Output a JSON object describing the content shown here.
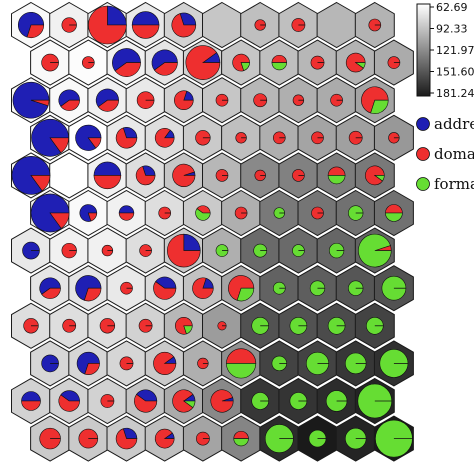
{
  "chart_data": {
    "type": "som-hexagonal-pie-map",
    "grid": {
      "columns": 10,
      "rows": 12
    },
    "colorbar": {
      "ticks": [
        "62.69",
        "92.33",
        "121.97",
        "151.60",
        "181.24"
      ],
      "min": 62.69,
      "max": 181.24,
      "gradient_from": "#ffffff",
      "gradient_to": "#1a1a1a"
    },
    "legend": [
      {
        "label": "addres",
        "color": "#1f1fb4"
      },
      {
        "label": "domai",
        "color": "#ee2f2f"
      },
      {
        "label": "forma",
        "color": "#66dd33"
      }
    ],
    "categories_colors": [
      "#1f1fb4",
      "#ee2f2f",
      "#66dd33"
    ],
    "background_values": [
      [
        66,
        70,
        70,
        74,
        86,
        92,
        96,
        96,
        100,
        102
      ],
      [
        66,
        64,
        70,
        76,
        86,
        92,
        96,
        100,
        102,
        106
      ],
      [
        66,
        66,
        70,
        74,
        86,
        92,
        100,
        104,
        106,
        110
      ],
      [
        66,
        62.69,
        74,
        80,
        90,
        96,
        104,
        110,
        112,
        116
      ],
      [
        66,
        62.69,
        70,
        80,
        92,
        100,
        124,
        128,
        130,
        132
      ],
      [
        70,
        66,
        70,
        80,
        90,
        104,
        132,
        134,
        136,
        136
      ],
      [
        74,
        70,
        70,
        80,
        90,
        104,
        140,
        140,
        142,
        144
      ],
      [
        76,
        76,
        74,
        82,
        94,
        110,
        144,
        146,
        150,
        152
      ],
      [
        80,
        80,
        80,
        86,
        100,
        114,
        152,
        152,
        156,
        160
      ],
      [
        84,
        84,
        84,
        90,
        104,
        120,
        160,
        160,
        166,
        170
      ],
      [
        86,
        86,
        86,
        94,
        106,
        124,
        166,
        168,
        172,
        176
      ],
      [
        90,
        90,
        90,
        96,
        110,
        126,
        172,
        181.24,
        176,
        181.24
      ]
    ],
    "pies": [
      [
        {
          "size": 0.45,
          "shares": [
            0.7,
            0.3,
            0
          ]
        },
        {
          "size": 0.15,
          "shares": [
            0,
            1,
            0
          ]
        },
        {
          "size": 1.0,
          "shares": [
            0.25,
            0.75,
            0
          ]
        },
        {
          "size": 0.5,
          "shares": [
            0.5,
            0.5,
            0
          ]
        },
        {
          "size": 0.4,
          "shares": [
            0.3,
            0.7,
            0
          ]
        },
        {
          "size": 0,
          "shares": [
            0,
            0,
            0
          ]
        },
        {
          "size": 0.08,
          "shares": [
            0,
            1,
            0
          ]
        },
        {
          "size": 0.12,
          "shares": [
            0,
            1,
            0
          ]
        },
        {
          "size": 0,
          "shares": [
            0,
            0,
            0
          ]
        },
        {
          "size": 0.1,
          "shares": [
            0,
            1,
            0
          ]
        }
      ],
      [
        {
          "size": 0.2,
          "shares": [
            0,
            1,
            0
          ]
        },
        {
          "size": 0.1,
          "shares": [
            0,
            1,
            0
          ]
        },
        {
          "size": 0.55,
          "shares": [
            0.6,
            0.4,
            0
          ]
        },
        {
          "size": 0.45,
          "shares": [
            0.6,
            0.4,
            0
          ]
        },
        {
          "size": 0.8,
          "shares": [
            0.1,
            0.9,
            0
          ]
        },
        {
          "size": 0.2,
          "shares": [
            0,
            0.8,
            0.2
          ]
        },
        {
          "size": 0.15,
          "shares": [
            0,
            0.5,
            0.5
          ]
        },
        {
          "size": 0.12,
          "shares": [
            0,
            1,
            0
          ]
        },
        {
          "size": 0.25,
          "shares": [
            0,
            0.9,
            0.1
          ]
        },
        {
          "size": 0.1,
          "shares": [
            0,
            1,
            0
          ]
        }
      ],
      [
        {
          "size": 0.9,
          "shares": [
            0.95,
            0.05,
            0
          ]
        },
        {
          "size": 0.3,
          "shares": [
            0.6,
            0.4,
            0
          ]
        },
        {
          "size": 0.35,
          "shares": [
            0.6,
            0.4,
            0
          ]
        },
        {
          "size": 0.2,
          "shares": [
            0,
            1,
            0
          ]
        },
        {
          "size": 0.25,
          "shares": [
            0.2,
            0.8,
            0
          ]
        },
        {
          "size": 0.1,
          "shares": [
            0,
            1,
            0
          ]
        },
        {
          "size": 0.12,
          "shares": [
            0,
            1,
            0
          ]
        },
        {
          "size": 0.08,
          "shares": [
            0,
            1,
            0
          ]
        },
        {
          "size": 0.1,
          "shares": [
            0,
            1,
            0
          ]
        },
        {
          "size": 0.5,
          "shares": [
            0,
            0.7,
            0.3
          ]
        }
      ],
      [
        {
          "size": 0.95,
          "shares": [
            0.85,
            0.15,
            0
          ]
        },
        {
          "size": 0.45,
          "shares": [
            0.85,
            0.15,
            0
          ]
        },
        {
          "size": 0.3,
          "shares": [
            0.3,
            0.7,
            0
          ]
        },
        {
          "size": 0.25,
          "shares": [
            0.15,
            0.85,
            0
          ]
        },
        {
          "size": 0.15,
          "shares": [
            0,
            1,
            0
          ]
        },
        {
          "size": 0.08,
          "shares": [
            0,
            1,
            0
          ]
        },
        {
          "size": 0.1,
          "shares": [
            0,
            1,
            0
          ]
        },
        {
          "size": 0.1,
          "shares": [
            0,
            1,
            0
          ]
        },
        {
          "size": 0.12,
          "shares": [
            0,
            1,
            0
          ]
        },
        {
          "size": 0.08,
          "shares": [
            0,
            1,
            0
          ]
        }
      ],
      [
        {
          "size": 1.0,
          "shares": [
            0.85,
            0.15,
            0
          ]
        },
        {
          "size": 0,
          "shares": [
            0,
            0,
            0
          ]
        },
        {
          "size": 0.5,
          "shares": [
            0.5,
            0.5,
            0
          ]
        },
        {
          "size": 0.25,
          "shares": [
            0.3,
            0.7,
            0
          ]
        },
        {
          "size": 0.35,
          "shares": [
            0.05,
            0.95,
            0
          ]
        },
        {
          "size": 0.1,
          "shares": [
            0,
            1,
            0
          ]
        },
        {
          "size": 0.08,
          "shares": [
            0,
            1,
            0
          ]
        },
        {
          "size": 0.1,
          "shares": [
            0,
            1,
            0
          ]
        },
        {
          "size": 0.2,
          "shares": [
            0,
            0.5,
            0.5
          ]
        },
        {
          "size": 0.25,
          "shares": [
            0,
            0.9,
            0.1
          ]
        }
      ],
      [
        {
          "size": 1.0,
          "shares": [
            0.85,
            0.15,
            0
          ]
        },
        {
          "size": 0.2,
          "shares": [
            0.8,
            0.2,
            0
          ]
        },
        {
          "size": 0.15,
          "shares": [
            0.5,
            0.5,
            0
          ]
        },
        {
          "size": 0.1,
          "shares": [
            0,
            1,
            0
          ]
        },
        {
          "size": 0.15,
          "shares": [
            0,
            0.4,
            0.6
          ]
        },
        {
          "size": 0.1,
          "shares": [
            0,
            1,
            0
          ]
        },
        {
          "size": 0.08,
          "shares": [
            0,
            0,
            1
          ]
        },
        {
          "size": 0.1,
          "shares": [
            0,
            1,
            0
          ]
        },
        {
          "size": 0.15,
          "shares": [
            0,
            0,
            1
          ]
        },
        {
          "size": 0.2,
          "shares": [
            0,
            0.5,
            0.5
          ]
        }
      ],
      [
        {
          "size": 0.2,
          "shares": [
            1,
            0,
            0
          ]
        },
        {
          "size": 0.15,
          "shares": [
            0,
            1,
            0
          ]
        },
        {
          "size": 0.08,
          "shares": [
            0,
            1,
            0
          ]
        },
        {
          "size": 0.1,
          "shares": [
            0,
            1,
            0
          ]
        },
        {
          "size": 0.75,
          "shares": [
            0.25,
            0.75,
            0
          ]
        },
        {
          "size": 0.1,
          "shares": [
            0,
            0,
            1
          ]
        },
        {
          "size": 0.12,
          "shares": [
            0,
            0,
            1
          ]
        },
        {
          "size": 0.1,
          "shares": [
            0,
            0,
            1
          ]
        },
        {
          "size": 0.15,
          "shares": [
            0,
            0,
            1
          ]
        },
        {
          "size": 0.75,
          "shares": [
            0,
            0.05,
            0.95
          ]
        }
      ],
      [
        {
          "size": 0.3,
          "shares": [
            0.6,
            0.4,
            0
          ]
        },
        {
          "size": 0.45,
          "shares": [
            0.7,
            0.3,
            0
          ]
        },
        {
          "size": 0.1,
          "shares": [
            0,
            1,
            0
          ]
        },
        {
          "size": 0.35,
          "shares": [
            0.4,
            0.6,
            0
          ]
        },
        {
          "size": 0.3,
          "shares": [
            0.2,
            0.8,
            0
          ]
        },
        {
          "size": 0.45,
          "shares": [
            0,
            0.7,
            0.3
          ]
        },
        {
          "size": 0.1,
          "shares": [
            0,
            0,
            1
          ]
        },
        {
          "size": 0.15,
          "shares": [
            0,
            0,
            1
          ]
        },
        {
          "size": 0.15,
          "shares": [
            0,
            0,
            1
          ]
        },
        {
          "size": 0.4,
          "shares": [
            0,
            0,
            1
          ]
        }
      ],
      [
        {
          "size": 0.15,
          "shares": [
            0,
            1,
            0
          ]
        },
        {
          "size": 0.12,
          "shares": [
            0,
            1,
            0
          ]
        },
        {
          "size": 0.15,
          "shares": [
            0,
            1,
            0
          ]
        },
        {
          "size": 0.12,
          "shares": [
            0,
            1,
            0
          ]
        },
        {
          "size": 0.2,
          "shares": [
            0,
            0.8,
            0.2
          ]
        },
        {
          "size": 0.05,
          "shares": [
            0,
            1,
            0
          ]
        },
        {
          "size": 0.2,
          "shares": [
            0,
            0,
            1
          ]
        },
        {
          "size": 0.2,
          "shares": [
            0,
            0,
            1
          ]
        },
        {
          "size": 0.2,
          "shares": [
            0,
            0,
            1
          ]
        },
        {
          "size": 0.2,
          "shares": [
            0,
            0,
            1
          ]
        }
      ],
      [
        {
          "size": 0.2,
          "shares": [
            1,
            0,
            0
          ]
        },
        {
          "size": 0.35,
          "shares": [
            0.7,
            0.3,
            0
          ]
        },
        {
          "size": 0.12,
          "shares": [
            0,
            1,
            0
          ]
        },
        {
          "size": 0.35,
          "shares": [
            0.1,
            0.9,
            0
          ]
        },
        {
          "size": 0.08,
          "shares": [
            0,
            1,
            0
          ]
        },
        {
          "size": 0.6,
          "shares": [
            0,
            0.5,
            0.5
          ]
        },
        {
          "size": 0.15,
          "shares": [
            0,
            0,
            1
          ]
        },
        {
          "size": 0.35,
          "shares": [
            0,
            0,
            1
          ]
        },
        {
          "size": 0.3,
          "shares": [
            0,
            0,
            1
          ]
        },
        {
          "size": 0.55,
          "shares": [
            0,
            0,
            1
          ]
        }
      ],
      [
        {
          "size": 0.25,
          "shares": [
            0.5,
            0.5,
            0
          ]
        },
        {
          "size": 0.3,
          "shares": [
            0.4,
            0.6,
            0
          ]
        },
        {
          "size": 0.12,
          "shares": [
            0,
            1,
            0
          ]
        },
        {
          "size": 0.35,
          "shares": [
            0.4,
            0.6,
            0
          ]
        },
        {
          "size": 0.35,
          "shares": [
            0.1,
            0.8,
            0.1
          ]
        },
        {
          "size": 0.35,
          "shares": [
            0.05,
            0.95,
            0
          ]
        },
        {
          "size": 0.2,
          "shares": [
            0,
            0,
            1
          ]
        },
        {
          "size": 0.2,
          "shares": [
            0,
            0,
            1
          ]
        },
        {
          "size": 0.3,
          "shares": [
            0,
            0,
            1
          ]
        },
        {
          "size": 0.8,
          "shares": [
            0,
            0,
            1
          ]
        }
      ],
      [
        {
          "size": 0.3,
          "shares": [
            0,
            1,
            0
          ]
        },
        {
          "size": 0.25,
          "shares": [
            0,
            1,
            0
          ]
        },
        {
          "size": 0.3,
          "shares": [
            0.3,
            0.7,
            0
          ]
        },
        {
          "size": 0.25,
          "shares": [
            0.1,
            0.9,
            0
          ]
        },
        {
          "size": 0.12,
          "shares": [
            0,
            1,
            0
          ]
        },
        {
          "size": 0.15,
          "shares": [
            0,
            0.5,
            0.5
          ]
        },
        {
          "size": 0.55,
          "shares": [
            0,
            0,
            1
          ]
        },
        {
          "size": 0.2,
          "shares": [
            0,
            0,
            1
          ]
        },
        {
          "size": 0.3,
          "shares": [
            0,
            0,
            1
          ]
        },
        {
          "size": 0.95,
          "shares": [
            0,
            0,
            1
          ]
        }
      ]
    ]
  }
}
